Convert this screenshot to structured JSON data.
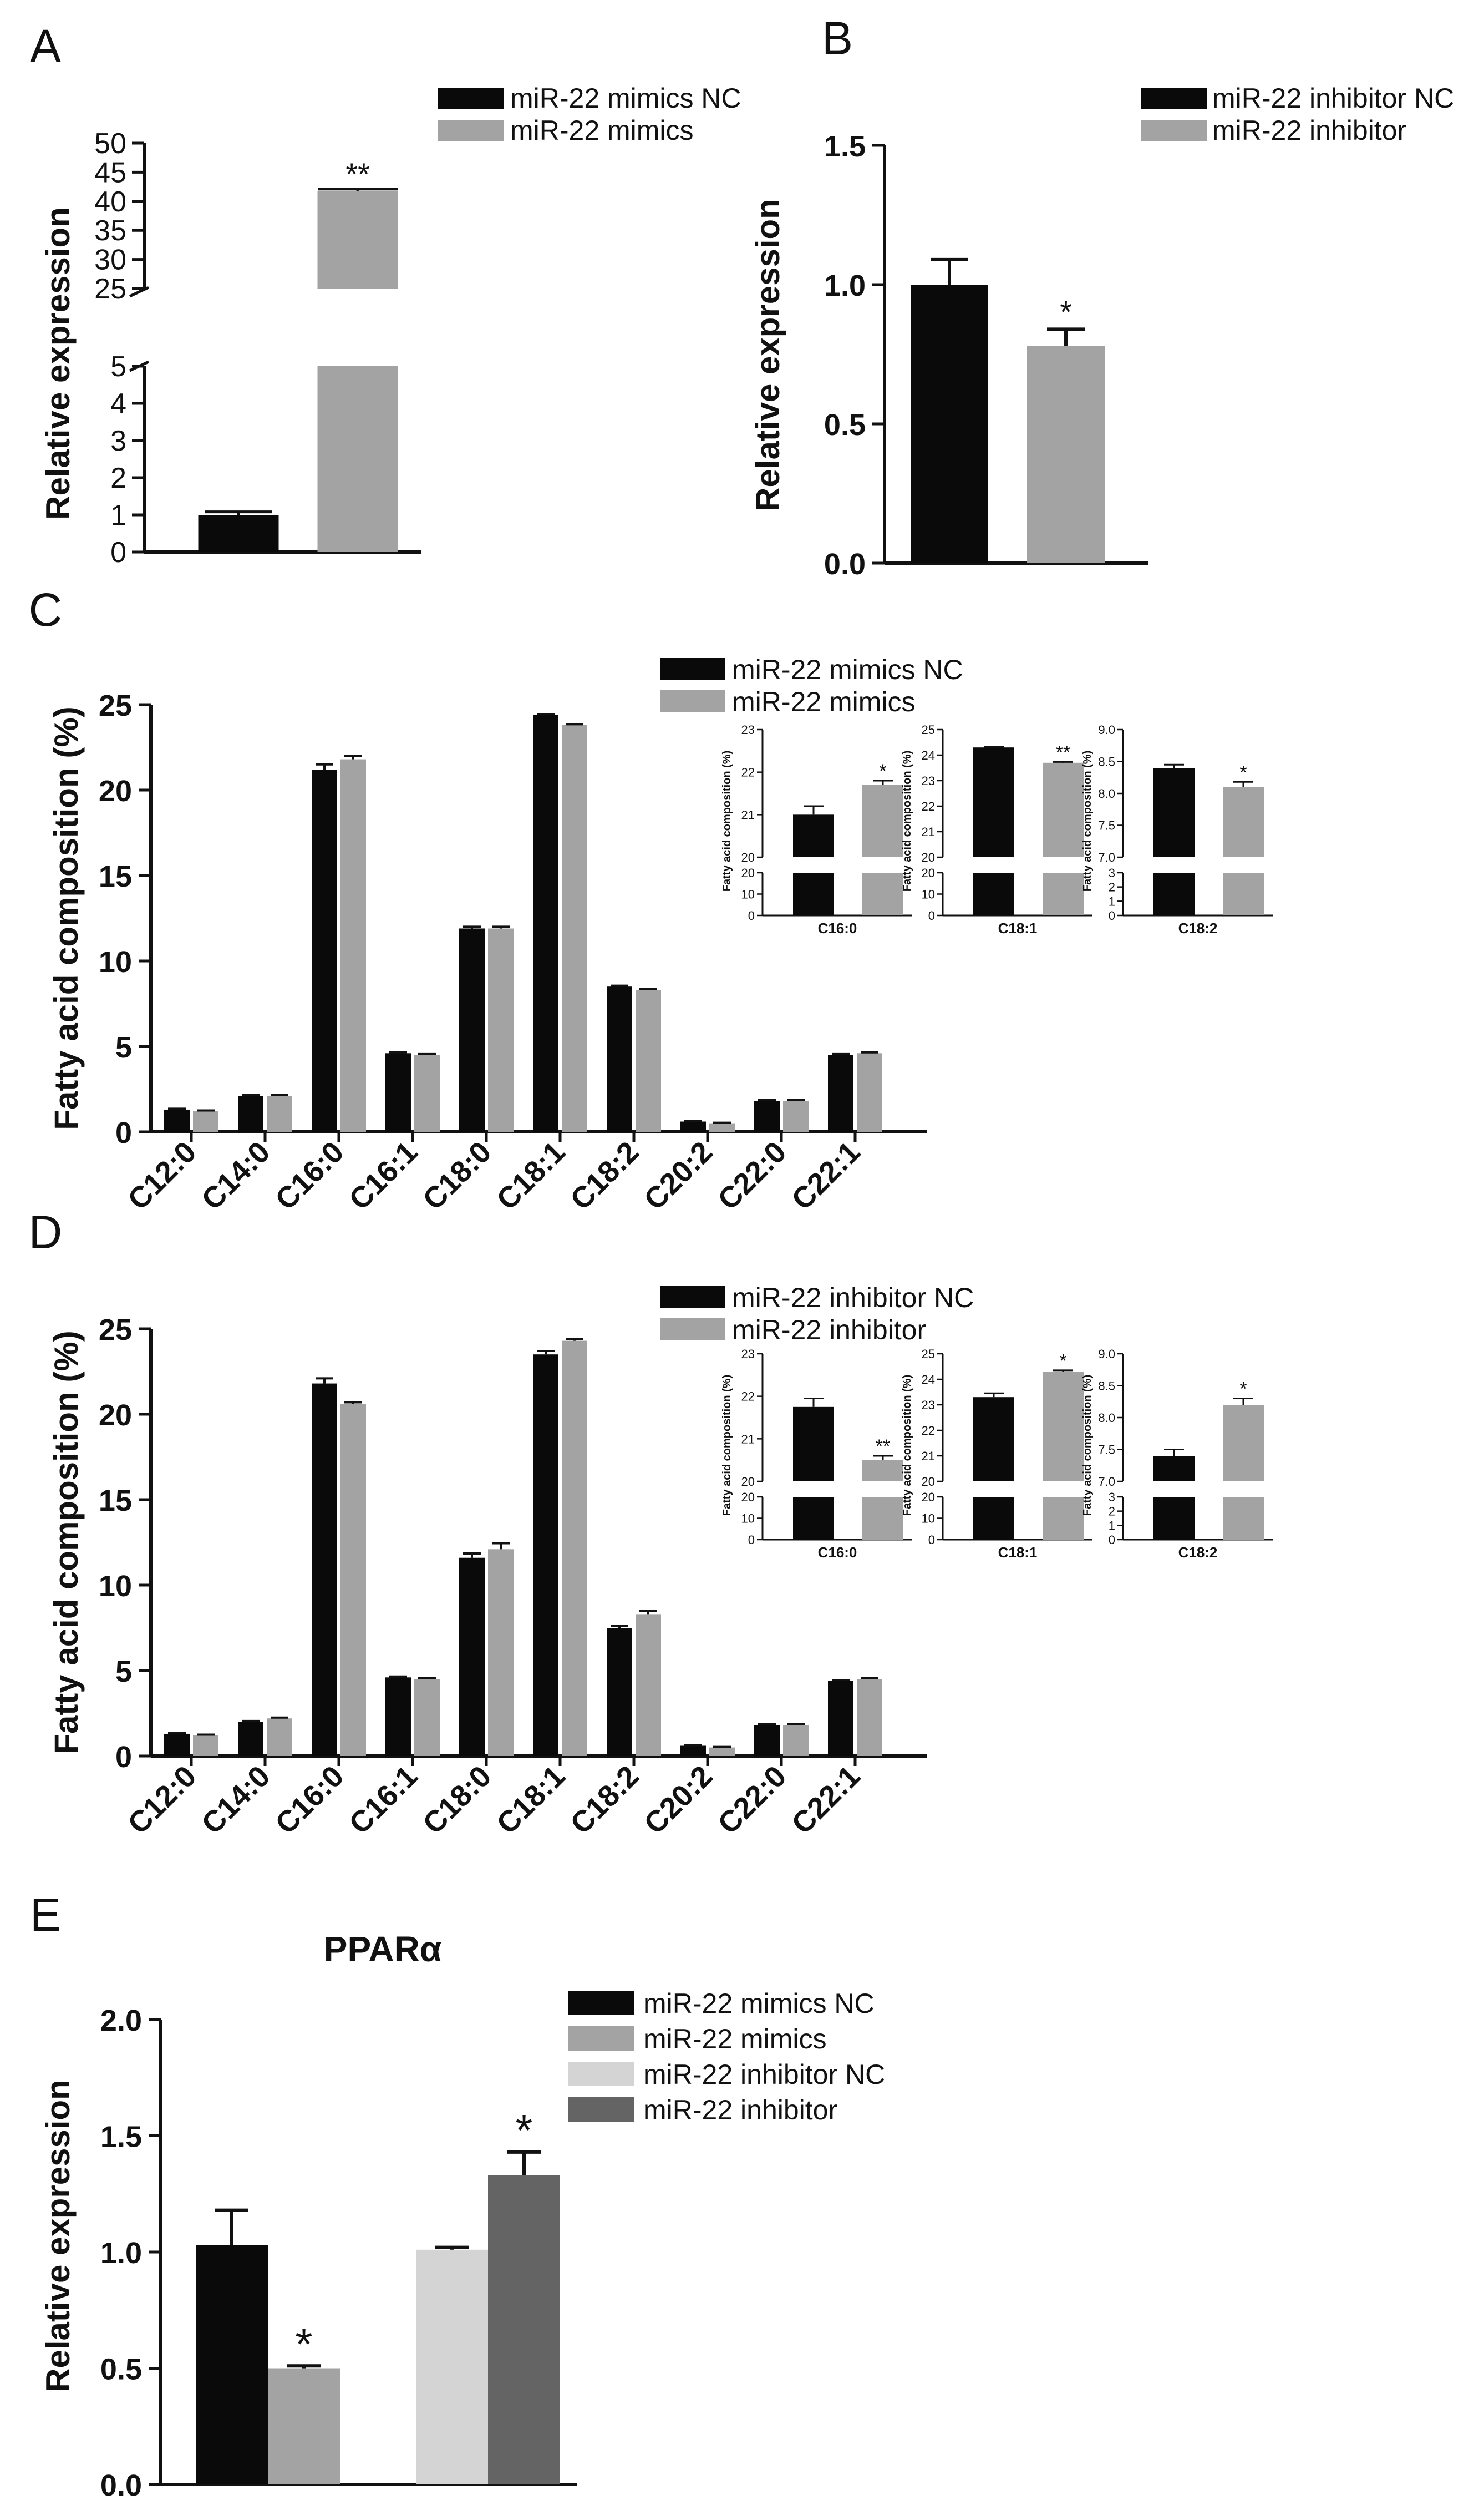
{
  "colors": {
    "black": "#0a0a0a",
    "gray": "#a3a3a3",
    "light_gray": "#d4d4d4",
    "dark_gray": "#646464"
  },
  "chart_data": [
    {
      "panel": "A",
      "type": "bar",
      "ylabel": "Relative expression",
      "categories": [
        "miR-22 mimics NC",
        "miR-22 mimics"
      ],
      "values": [
        1.0,
        41.8
      ],
      "errors": [
        0.08,
        0.3
      ],
      "significance": [
        "",
        "**"
      ],
      "axis_break": {
        "lower": [
          0,
          5
        ],
        "upper": [
          25,
          50
        ]
      },
      "lower_ticks": [
        "0",
        "1",
        "2",
        "3",
        "4",
        "5"
      ],
      "upper_ticks": [
        "25",
        "30",
        "35",
        "40",
        "45",
        "50"
      ],
      "legend": [
        "miR-22 mimics NC",
        "miR-22 mimics"
      ],
      "legend_position": "top-right"
    },
    {
      "panel": "B",
      "type": "bar",
      "ylabel": "Relative expression",
      "categories": [
        "miR-22 inhibitor NC",
        "miR-22 inhibitor"
      ],
      "values": [
        1.0,
        0.78
      ],
      "errors": [
        0.09,
        0.06
      ],
      "significance": [
        "",
        "*"
      ],
      "ylim": [
        0,
        1.5
      ],
      "yticks": [
        "0.0",
        "0.5",
        "1.0",
        "1.5"
      ],
      "legend": [
        "miR-22 inhibitor NC",
        "miR-22 inhibitor"
      ],
      "legend_position": "top-right"
    },
    {
      "panel": "C",
      "type": "bar",
      "ylabel": "Fatty acid composition (%)",
      "categories": [
        "C12:0",
        "C14:0",
        "C16:0",
        "C16:1",
        "C18:0",
        "C18:1",
        "C18:2",
        "C20:2",
        "C22:0",
        "C22:1"
      ],
      "series": [
        {
          "name": "miR-22 mimics NC",
          "values": [
            1.3,
            2.1,
            21.2,
            4.6,
            11.9,
            24.4,
            8.5,
            0.6,
            1.8,
            4.5
          ],
          "errors": [
            0.05,
            0.05,
            0.3,
            0.05,
            0.1,
            0.05,
            0.05,
            0.03,
            0.05,
            0.05
          ]
        },
        {
          "name": "miR-22 mimics",
          "values": [
            1.2,
            2.1,
            21.8,
            4.5,
            11.9,
            23.8,
            8.3,
            0.5,
            1.8,
            4.6
          ],
          "errors": [
            0.05,
            0.05,
            0.2,
            0.05,
            0.1,
            0.05,
            0.05,
            0.03,
            0.05,
            0.05
          ]
        }
      ],
      "ylim": [
        0,
        25
      ],
      "yticks": [
        "0",
        "5",
        "10",
        "15",
        "20",
        "25"
      ],
      "legend_position": "top-right",
      "insets": [
        {
          "category": "C16:0",
          "ylabel": "Fatty acid composition (%)",
          "values": [
            21.0,
            21.7
          ],
          "errors": [
            0.2,
            0.1
          ],
          "significance": [
            "",
            "*"
          ],
          "upper": [
            20,
            23
          ],
          "lower_ticks": [
            "0",
            "10",
            "20"
          ],
          "upper_ticks": [
            "20",
            "21",
            "22",
            "23"
          ]
        },
        {
          "category": "C18:1",
          "ylabel": "Fatty acid composition (%)",
          "values": [
            24.3,
            23.7
          ],
          "errors": [
            0.02,
            0.03
          ],
          "significance": [
            "",
            "**"
          ],
          "upper": [
            20,
            25
          ],
          "lower_ticks": [
            "0",
            "10",
            "20"
          ],
          "upper_ticks": [
            "20",
            "21",
            "22",
            "23",
            "24",
            "25"
          ]
        },
        {
          "category": "C18:2",
          "ylabel": "Fatty acid composition (%)",
          "values": [
            8.4,
            8.1
          ],
          "errors": [
            0.05,
            0.08
          ],
          "significance": [
            "",
            "*"
          ],
          "upper": [
            7.0,
            9.0
          ],
          "lower_ticks": [
            "0",
            "1",
            "2",
            "3"
          ],
          "upper_ticks": [
            "7.0",
            "7.5",
            "8.0",
            "8.5",
            "9.0"
          ]
        }
      ]
    },
    {
      "panel": "D",
      "type": "bar",
      "ylabel": "Fatty acid composition (%)",
      "categories": [
        "C12:0",
        "C14:0",
        "C16:0",
        "C16:1",
        "C18:0",
        "C18:1",
        "C18:2",
        "C20:2",
        "C22:0",
        "C22:1"
      ],
      "series": [
        {
          "name": "miR-22 inhibitor NC",
          "values": [
            1.3,
            2.0,
            21.8,
            4.6,
            11.6,
            23.5,
            7.5,
            0.6,
            1.8,
            4.4
          ],
          "errors": [
            0.05,
            0.05,
            0.3,
            0.05,
            0.25,
            0.2,
            0.1,
            0.03,
            0.05,
            0.05
          ]
        },
        {
          "name": "miR-22 inhibitor",
          "values": [
            1.2,
            2.2,
            20.6,
            4.5,
            12.1,
            24.3,
            8.3,
            0.5,
            1.8,
            4.5
          ],
          "errors": [
            0.05,
            0.05,
            0.1,
            0.05,
            0.35,
            0.1,
            0.2,
            0.03,
            0.05,
            0.05
          ]
        }
      ],
      "ylim": [
        0,
        25
      ],
      "yticks": [
        "0",
        "5",
        "10",
        "15",
        "20",
        "25"
      ],
      "legend_position": "top-right",
      "insets": [
        {
          "category": "C16:0",
          "ylabel": "Fatty acid composition (%)",
          "values": [
            21.75,
            20.5
          ],
          "errors": [
            0.2,
            0.1
          ],
          "significance": [
            "",
            "**"
          ],
          "upper": [
            20,
            23
          ],
          "lower_ticks": [
            "0",
            "10",
            "20"
          ],
          "upper_ticks": [
            "20",
            "21",
            "22",
            "23"
          ]
        },
        {
          "category": "C18:1",
          "ylabel": "Fatty acid composition (%)",
          "values": [
            23.3,
            24.3
          ],
          "errors": [
            0.15,
            0.05
          ],
          "significance": [
            "",
            "*"
          ],
          "upper": [
            20,
            25
          ],
          "lower_ticks": [
            "0",
            "10",
            "20"
          ],
          "upper_ticks": [
            "20",
            "21",
            "22",
            "23",
            "24",
            "25"
          ]
        },
        {
          "category": "C18:2",
          "ylabel": "Fatty acid composition (%)",
          "values": [
            7.4,
            8.2
          ],
          "errors": [
            0.1,
            0.1
          ],
          "significance": [
            "",
            "*"
          ],
          "upper": [
            7.0,
            9.0
          ],
          "lower_ticks": [
            "0",
            "1",
            "2",
            "3"
          ],
          "upper_ticks": [
            "7.0",
            "7.5",
            "8.0",
            "8.5",
            "9.0"
          ]
        }
      ]
    },
    {
      "panel": "E",
      "type": "bar",
      "title": "PPARα",
      "ylabel": "Relative expression",
      "categories": [
        "miR-22 mimics NC",
        "miR-22 mimics",
        "miR-22 inhibitor NC",
        "miR-22 inhibitor"
      ],
      "values": [
        1.03,
        0.5,
        1.01,
        1.33
      ],
      "errors": [
        0.15,
        0.01,
        0.01,
        0.1
      ],
      "significance": [
        "",
        "*",
        "",
        "*"
      ],
      "ylim": [
        0,
        2.0
      ],
      "yticks": [
        "0.0",
        "0.5",
        "1.0",
        "1.5",
        "2.0"
      ],
      "legend": [
        "miR-22 mimics NC",
        "miR-22 mimics",
        "miR-22 inhibitor NC",
        "miR-22 inhibitor"
      ],
      "legend_position": "top-right"
    }
  ]
}
